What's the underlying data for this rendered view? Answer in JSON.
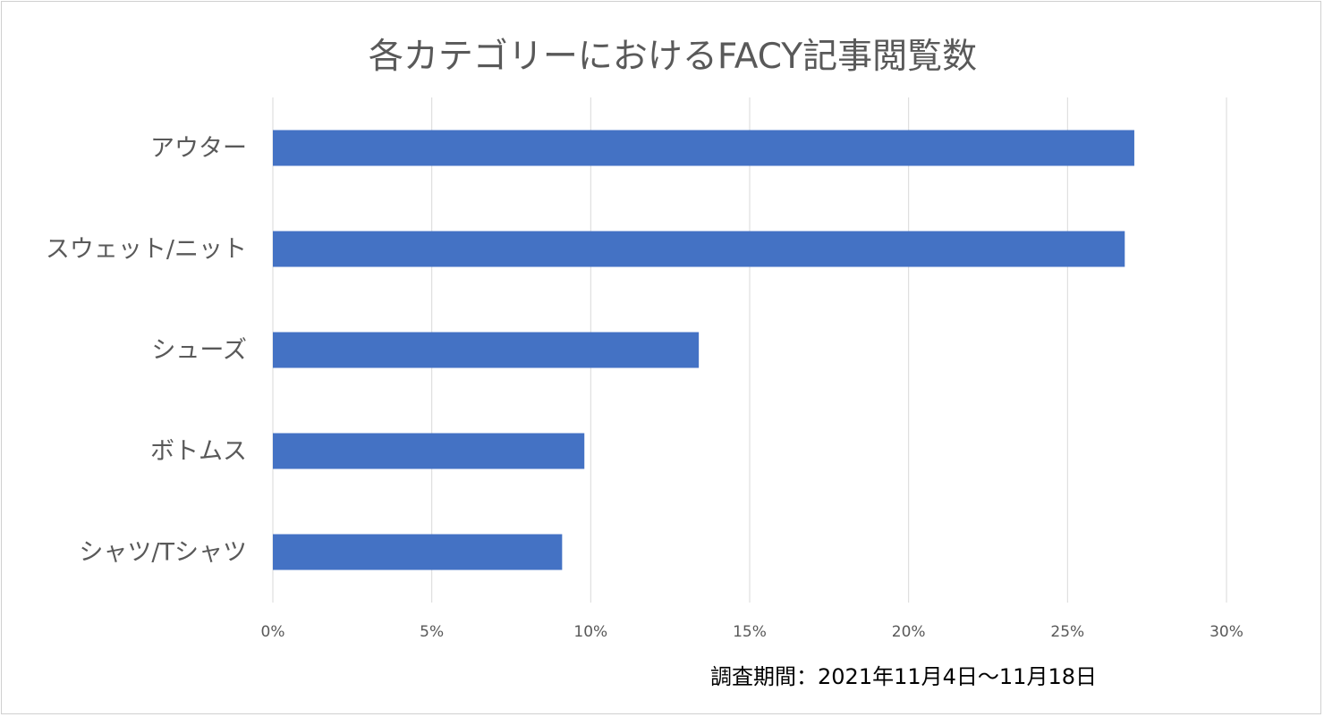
{
  "chart_data": {
    "type": "bar",
    "orientation": "horizontal",
    "title": "各カテゴリーにおけるFACY記事閲覧数",
    "categories": [
      "アウター",
      "スウェット/ニット",
      "シューズ",
      "ボトムス",
      "シャツ/Tシャツ"
    ],
    "series": [
      {
        "values": [
          27.1,
          26.8,
          13.4,
          9.8,
          9.1
        ]
      }
    ],
    "xlim": [
      0,
      30
    ],
    "x_ticks": [
      0,
      5,
      10,
      15,
      20,
      25,
      30
    ],
    "x_tick_labels": [
      "0%",
      "5%",
      "10%",
      "15%",
      "20%",
      "25%",
      "30%"
    ],
    "grid": "vertical",
    "legend": "none",
    "bar_color": "#4472c4",
    "gridline_color": "#d9d9d9"
  },
  "note": "調査期間：2021年11月4日～11月18日"
}
